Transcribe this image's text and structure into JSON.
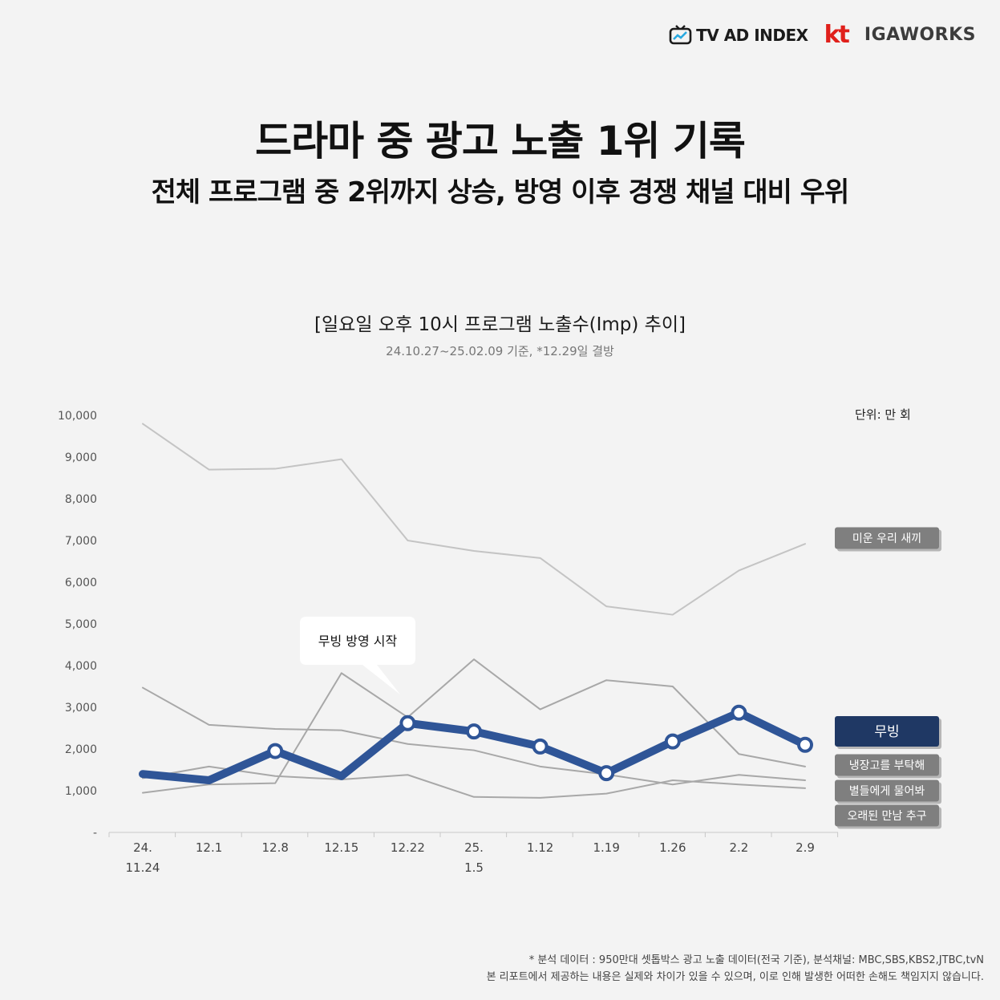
{
  "logos": {
    "tvadindex": "TV AD INDEX",
    "kt": "kt",
    "igaworks": "IGAWORKS"
  },
  "headline": "드라마 중 광고 노출 1위 기록",
  "subheadline": "전체 프로그램 중 2위까지 상승, 방영 이후 경쟁 채널 대비 우위",
  "footnotes": [
    "* 분석 데이터 : 950만대 셋톱박스 광고 노출 데이터(전국 기준), 분석채널: MBC,SBS,KBS2,JTBC,tvN",
    "본 리포트에서 제공하는 내용은 실제와 차이가 있을 수 있으며, 이로 인해 발생한 어떠한 손해도 책임지지 않습니다."
  ],
  "chart_data": {
    "type": "line",
    "title": "[일요일 오후 10시 프로그램 노출수(Imp) 추이]",
    "subtitle": "24.10.27~25.02.09 기준, *12.29일 결방",
    "unit": "단위: 만 회",
    "annotation": "무빙 방영 시작",
    "categories": [
      "24.\n11.24",
      "12.1",
      "12.8",
      "12.15",
      "12.22",
      "25.\n1.5",
      "1.12",
      "1.19",
      "1.26",
      "2.2",
      "2.9"
    ],
    "y_ticks": [
      "-",
      "1,000",
      "2,000",
      "3,000",
      "4,000",
      "5,000",
      "6,000",
      "7,000",
      "8,000",
      "9,000",
      "10,000"
    ],
    "ylim": [
      0,
      10000
    ],
    "grid": false,
    "series": [
      {
        "name": "미운 우리 새끼",
        "color": "#c4c4c4",
        "values": [
          9800,
          8700,
          8720,
          8950,
          7000,
          6750,
          6580,
          5420,
          5220,
          6280,
          6920
        ]
      },
      {
        "name": "무빙",
        "color": "#2f5597",
        "values": [
          1400,
          1250,
          1950,
          1350,
          2620,
          2420,
          2060,
          1420,
          2180,
          2870,
          2100
        ]
      },
      {
        "name": "냉장고를 부탁해",
        "color": "#a8a8a8",
        "values": [
          3470,
          2580,
          2480,
          2450,
          2120,
          1970,
          1580,
          1390,
          1150,
          1380,
          1250
        ]
      },
      {
        "name": "별들에게 물어봐",
        "color": "#a8a8a8",
        "values": [
          950,
          1150,
          1180,
          3820,
          2760,
          4150,
          2950,
          3650,
          3500,
          1880,
          1580
        ]
      },
      {
        "name": "오래된 만남 추구",
        "color": "#a8a8a8",
        "values": [
          1300,
          1580,
          1350,
          1270,
          1380,
          850,
          830,
          930,
          1250,
          1150,
          1060
        ]
      }
    ]
  }
}
